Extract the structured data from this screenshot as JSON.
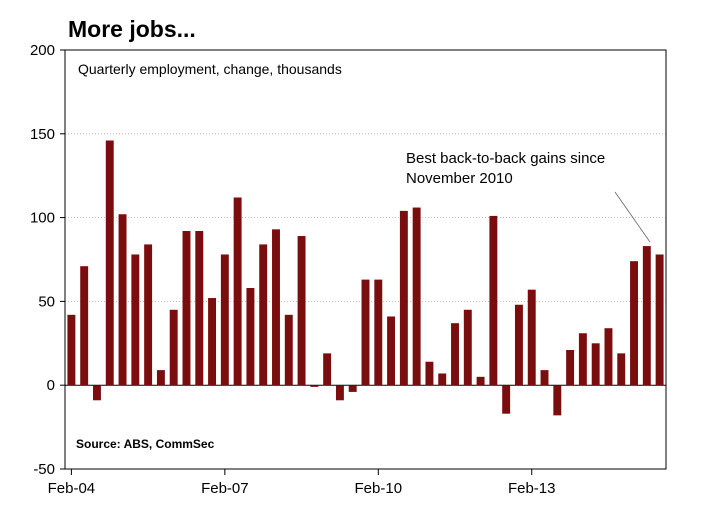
{
  "title": "More jobs...",
  "chart_data": {
    "type": "bar",
    "subtitle": "Quarterly employment, change, thousands",
    "source": "Source: ABS, CommSec",
    "annotation": [
      "Best back-to-back gains since",
      "November 2010"
    ],
    "ylim": [
      -50,
      200
    ],
    "yticks": [
      -50,
      0,
      50,
      100,
      150,
      200
    ],
    "grid": true,
    "x_tick_labels": [
      {
        "label": "Feb-04",
        "index": 0
      },
      {
        "label": "Feb-07",
        "index": 12
      },
      {
        "label": "Feb-10",
        "index": 24
      },
      {
        "label": "Feb-13",
        "index": 36
      }
    ],
    "bar_color": "#7a0e0e",
    "values": [
      42,
      71,
      -9,
      146,
      102,
      78,
      84,
      9,
      45,
      92,
      92,
      52,
      78,
      112,
      58,
      84,
      93,
      42,
      89,
      -1,
      19,
      -9,
      -4,
      63,
      63,
      41,
      104,
      106,
      14,
      7,
      37,
      45,
      5,
      101,
      -17,
      48,
      57,
      9,
      -18,
      21,
      31,
      25,
      34,
      19,
      74,
      83,
      78
    ]
  }
}
